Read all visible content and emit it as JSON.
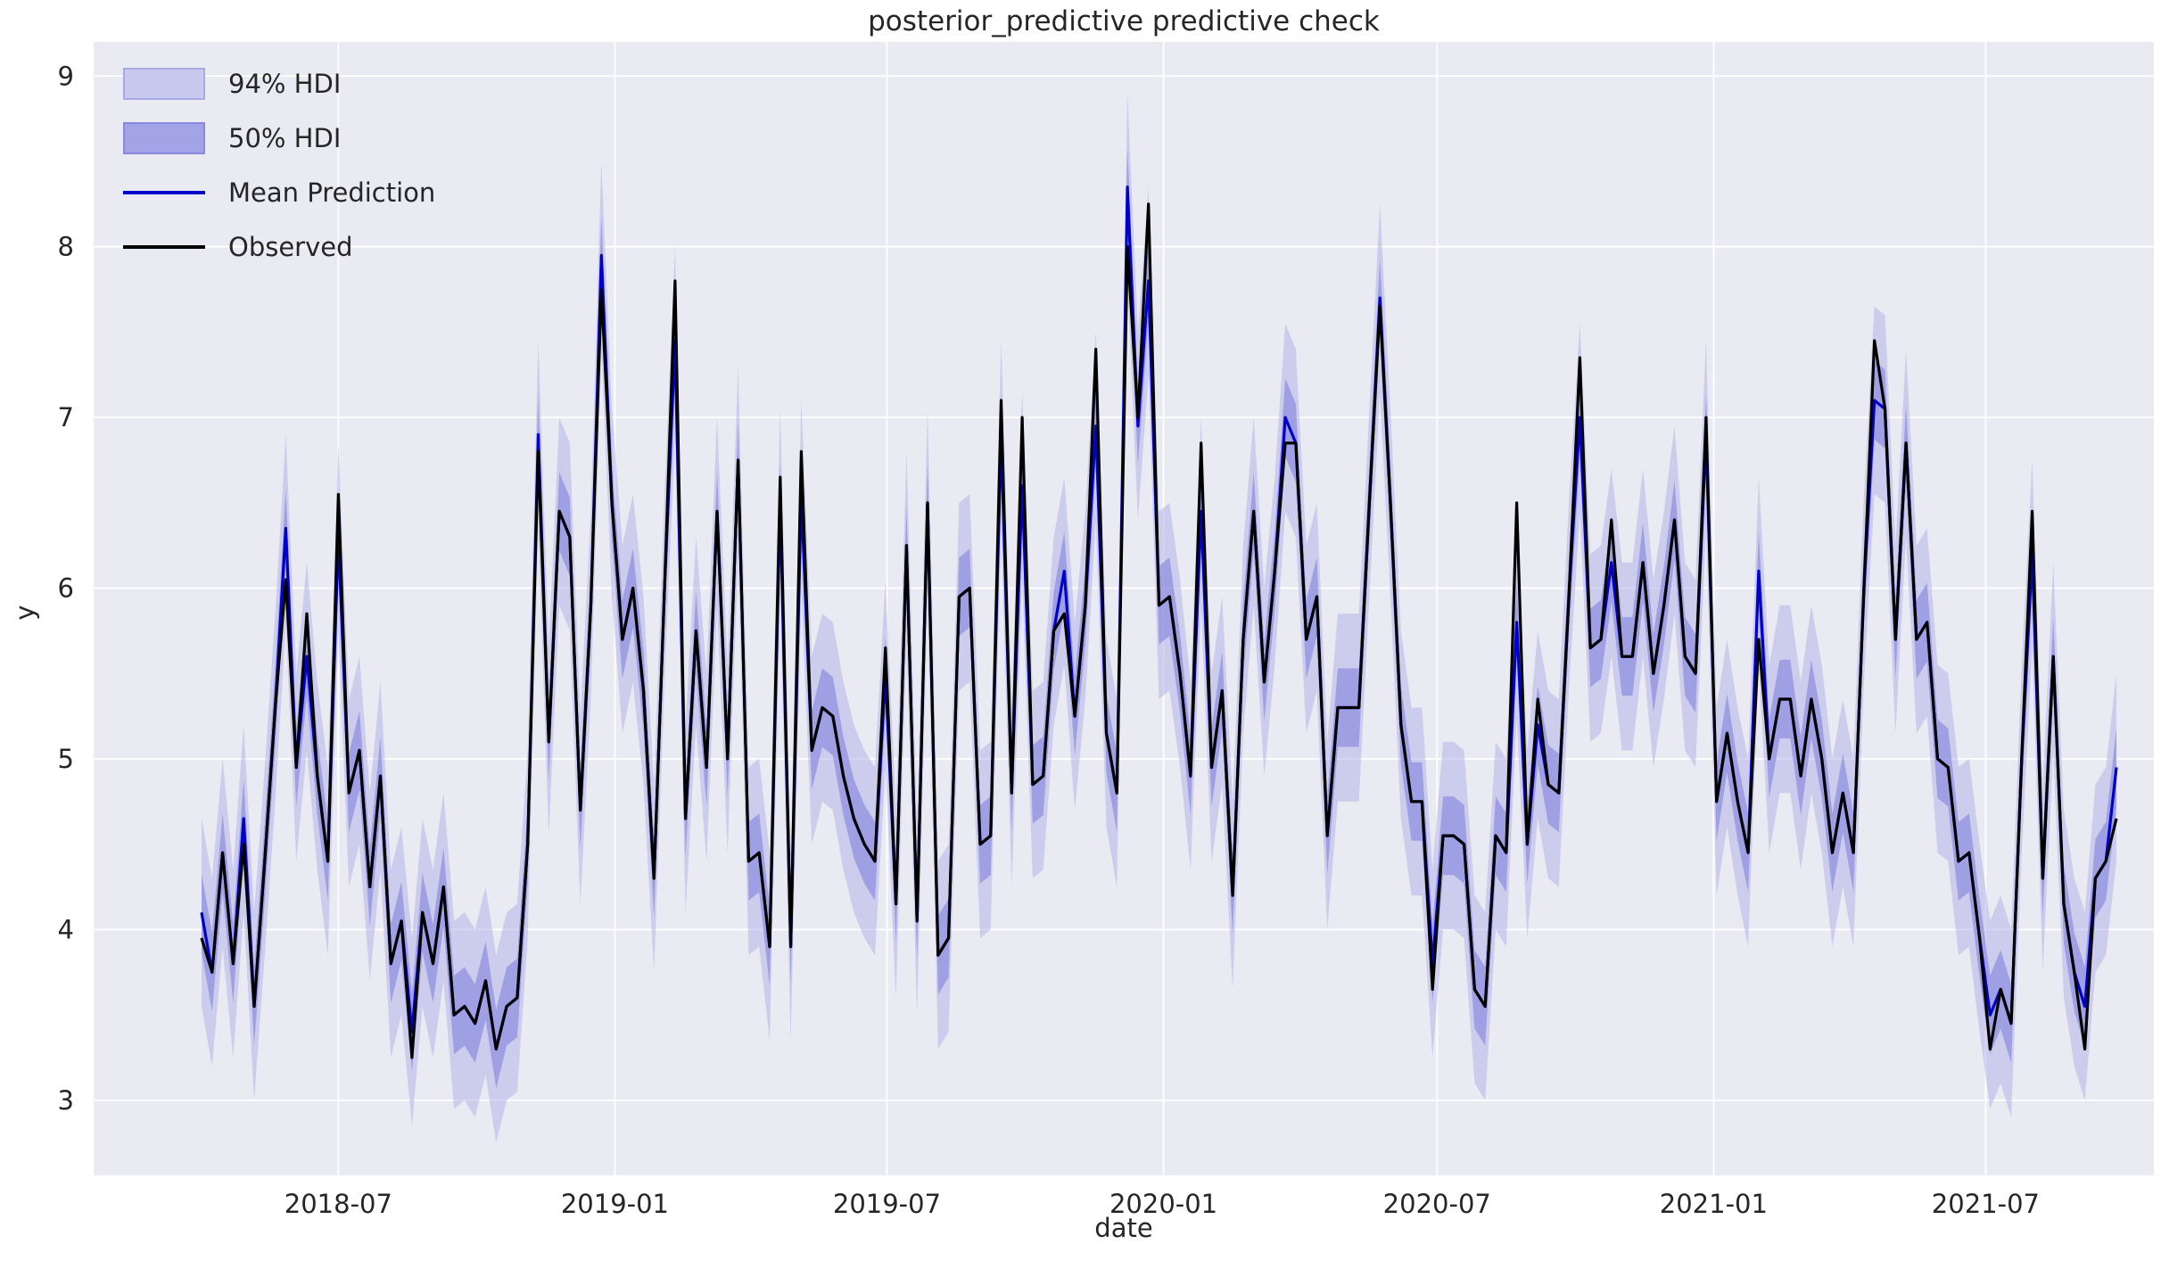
{
  "chart_data": {
    "type": "line",
    "title": "posterior_predictive predictive check",
    "xlabel": "date",
    "ylabel": "y",
    "grid": true,
    "legend_position": "upper left",
    "plot_bg": "#eaeaf2",
    "grid_color": "#ffffff",
    "text_color": "#262626",
    "ylim": [
      2.56,
      9.2
    ],
    "y_ticks": [
      3,
      4,
      5,
      6,
      7,
      8,
      9
    ],
    "x_ticks": [
      {
        "label": "2018-07",
        "date": "2018-07-01"
      },
      {
        "label": "2019-01",
        "date": "2019-01-01"
      },
      {
        "label": "2019-07",
        "date": "2019-07-01"
      },
      {
        "label": "2020-01",
        "date": "2020-01-01"
      },
      {
        "label": "2020-07",
        "date": "2020-07-01"
      },
      {
        "label": "2021-01",
        "date": "2021-01-01"
      },
      {
        "label": "2021-07",
        "date": "2021-07-01"
      }
    ],
    "x_start_date": "2018-04-01",
    "x_step_days": 7,
    "n_points": 183,
    "bands": [
      {
        "name": "94% HDI",
        "halfwidth": 0.55,
        "fill": "#aeaee8",
        "opacity": 0.5
      },
      {
        "name": "50% HDI",
        "halfwidth": 0.23,
        "fill": "#8181dd",
        "opacity": 0.6
      }
    ],
    "series": [
      {
        "name": "Mean Prediction",
        "color": "#0000cd",
        "width": 3.2,
        "values": [
          4.1,
          3.75,
          4.45,
          3.8,
          4.65,
          3.55,
          4.4,
          5.3,
          6.35,
          4.95,
          5.6,
          4.9,
          4.4,
          6.3,
          4.8,
          5.05,
          4.25,
          4.9,
          3.8,
          4.05,
          3.4,
          4.1,
          3.8,
          4.25,
          3.5,
          3.55,
          3.45,
          3.7,
          3.3,
          3.55,
          3.6,
          4.5,
          6.9,
          5.1,
          6.45,
          6.3,
          4.7,
          5.9,
          7.95,
          6.5,
          5.7,
          6.0,
          5.4,
          4.3,
          6.0,
          7.45,
          4.65,
          5.75,
          4.95,
          6.45,
          5.0,
          6.75,
          4.4,
          4.45,
          3.9,
          6.5,
          3.9,
          6.55,
          5.05,
          5.3,
          5.25,
          4.9,
          4.65,
          4.5,
          4.4,
          5.5,
          4.15,
          6.25,
          4.05,
          6.5,
          3.85,
          3.95,
          5.95,
          6.0,
          4.5,
          4.55,
          6.9,
          4.8,
          6.6,
          4.85,
          4.9,
          5.75,
          6.1,
          5.25,
          5.9,
          6.95,
          5.15,
          4.8,
          8.35,
          6.95,
          7.8,
          5.9,
          5.95,
          5.5,
          4.9,
          6.45,
          4.95,
          5.4,
          4.2,
          5.7,
          6.45,
          5.45,
          6.1,
          7.0,
          6.85,
          5.7,
          5.95,
          4.55,
          5.3,
          5.3,
          5.3,
          6.5,
          7.7,
          6.5,
          5.2,
          4.75,
          4.75,
          3.8,
          4.55,
          4.55,
          4.5,
          3.65,
          3.55,
          4.55,
          4.45,
          5.8,
          4.5,
          5.2,
          4.85,
          4.8,
          6.0,
          7.0,
          5.65,
          5.7,
          6.15,
          5.6,
          5.6,
          6.15,
          5.5,
          5.9,
          6.4,
          5.6,
          5.5,
          6.9,
          4.75,
          5.15,
          4.75,
          4.45,
          6.1,
          5.0,
          5.35,
          5.35,
          4.9,
          5.35,
          5.0,
          4.45,
          4.8,
          4.45,
          6.0,
          7.1,
          7.05,
          5.7,
          6.85,
          5.7,
          5.8,
          5.0,
          4.95,
          4.4,
          4.45,
          3.95,
          3.5,
          3.65,
          3.45,
          5.0,
          6.2,
          4.3,
          5.6,
          4.15,
          3.75,
          3.55,
          4.3,
          4.4,
          4.95
        ]
      },
      {
        "name": "Observed",
        "color": "#000000",
        "width": 3.2,
        "values": [
          3.95,
          3.75,
          4.45,
          3.8,
          4.5,
          3.55,
          4.4,
          5.3,
          6.05,
          4.95,
          5.85,
          4.9,
          4.4,
          6.55,
          4.8,
          5.05,
          4.25,
          4.9,
          3.8,
          4.05,
          3.25,
          4.1,
          3.8,
          4.25,
          3.5,
          3.55,
          3.45,
          3.7,
          3.3,
          3.55,
          3.6,
          4.5,
          6.8,
          5.1,
          6.45,
          6.3,
          4.7,
          5.9,
          7.75,
          6.5,
          5.7,
          6.0,
          5.4,
          4.3,
          6.0,
          7.8,
          4.65,
          5.75,
          4.95,
          6.45,
          5.0,
          6.75,
          4.4,
          4.45,
          3.9,
          6.65,
          3.9,
          6.8,
          5.05,
          5.3,
          5.25,
          4.9,
          4.65,
          4.5,
          4.4,
          5.65,
          4.15,
          6.25,
          4.05,
          6.5,
          3.85,
          3.95,
          5.95,
          6.0,
          4.5,
          4.55,
          7.1,
          4.8,
          7.0,
          4.85,
          4.9,
          5.75,
          5.85,
          5.25,
          5.9,
          7.4,
          5.15,
          4.8,
          8.0,
          7.0,
          8.25,
          5.9,
          5.95,
          5.5,
          4.9,
          6.85,
          4.95,
          5.4,
          4.2,
          5.7,
          6.45,
          5.45,
          6.1,
          6.85,
          6.85,
          5.7,
          5.95,
          4.55,
          5.3,
          5.3,
          5.3,
          6.5,
          7.65,
          6.5,
          5.2,
          4.75,
          4.75,
          3.65,
          4.55,
          4.55,
          4.5,
          3.65,
          3.55,
          4.55,
          4.45,
          6.5,
          4.5,
          5.35,
          4.85,
          4.8,
          6.0,
          7.35,
          5.65,
          5.7,
          6.4,
          5.6,
          5.6,
          6.15,
          5.5,
          5.9,
          6.4,
          5.6,
          5.5,
          7.0,
          4.75,
          5.15,
          4.75,
          4.45,
          5.7,
          5.0,
          5.35,
          5.35,
          4.9,
          5.35,
          5.0,
          4.45,
          4.8,
          4.45,
          6.0,
          7.45,
          7.05,
          5.7,
          6.85,
          5.7,
          5.8,
          5.0,
          4.95,
          4.4,
          4.45,
          3.95,
          3.3,
          3.65,
          3.45,
          5.0,
          6.45,
          4.3,
          5.6,
          4.15,
          3.75,
          3.3,
          4.3,
          4.4,
          4.65
        ]
      }
    ]
  },
  "legend": {
    "items": [
      {
        "label": "94% HDI",
        "kind": "band",
        "fill": "#c9c9f0",
        "border": "#a9a9e3"
      },
      {
        "label": "50% HDI",
        "kind": "band",
        "fill": "#a3a3e8",
        "border": "#8888dd"
      },
      {
        "label": "Mean Prediction",
        "kind": "line",
        "color": "#0000cd"
      },
      {
        "label": "Observed",
        "kind": "line",
        "color": "#000000"
      }
    ]
  },
  "layout_text": {
    "title": "posterior_predictive predictive check",
    "xlabel": "date",
    "ylabel": "y"
  }
}
